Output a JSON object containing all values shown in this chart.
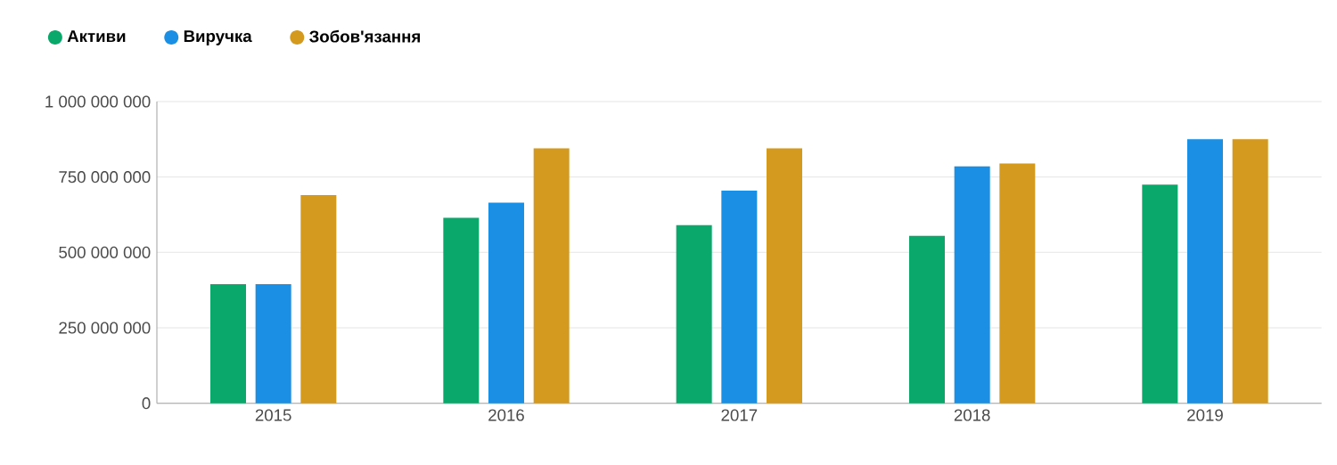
{
  "chart_data": {
    "type": "bar",
    "categories": [
      "2015",
      "2016",
      "2017",
      "2018",
      "2019"
    ],
    "series": [
      {
        "name": "Активи",
        "color": "#0aa86a",
        "values": [
          395000000,
          615000000,
          590000000,
          555000000,
          725000000
        ]
      },
      {
        "name": "Виручка",
        "color": "#1a8fe3",
        "values": [
          395000000,
          665000000,
          705000000,
          785000000,
          875000000
        ]
      },
      {
        "name": "Зобов'язання",
        "color": "#d4991f",
        "values": [
          690000000,
          845000000,
          845000000,
          795000000,
          875000000
        ]
      }
    ],
    "ylim": [
      0,
      1000000000
    ],
    "yticks": [
      0,
      {
        "value": 250000000,
        "label": "250 000 000"
      },
      {
        "value": 500000000,
        "label": "500 000 000"
      },
      {
        "value": 750000000,
        "label": "750 000 000"
      },
      {
        "value": 1000000000,
        "label": "1 000 000 000"
      }
    ],
    "grid": "y",
    "legend": "top left"
  }
}
